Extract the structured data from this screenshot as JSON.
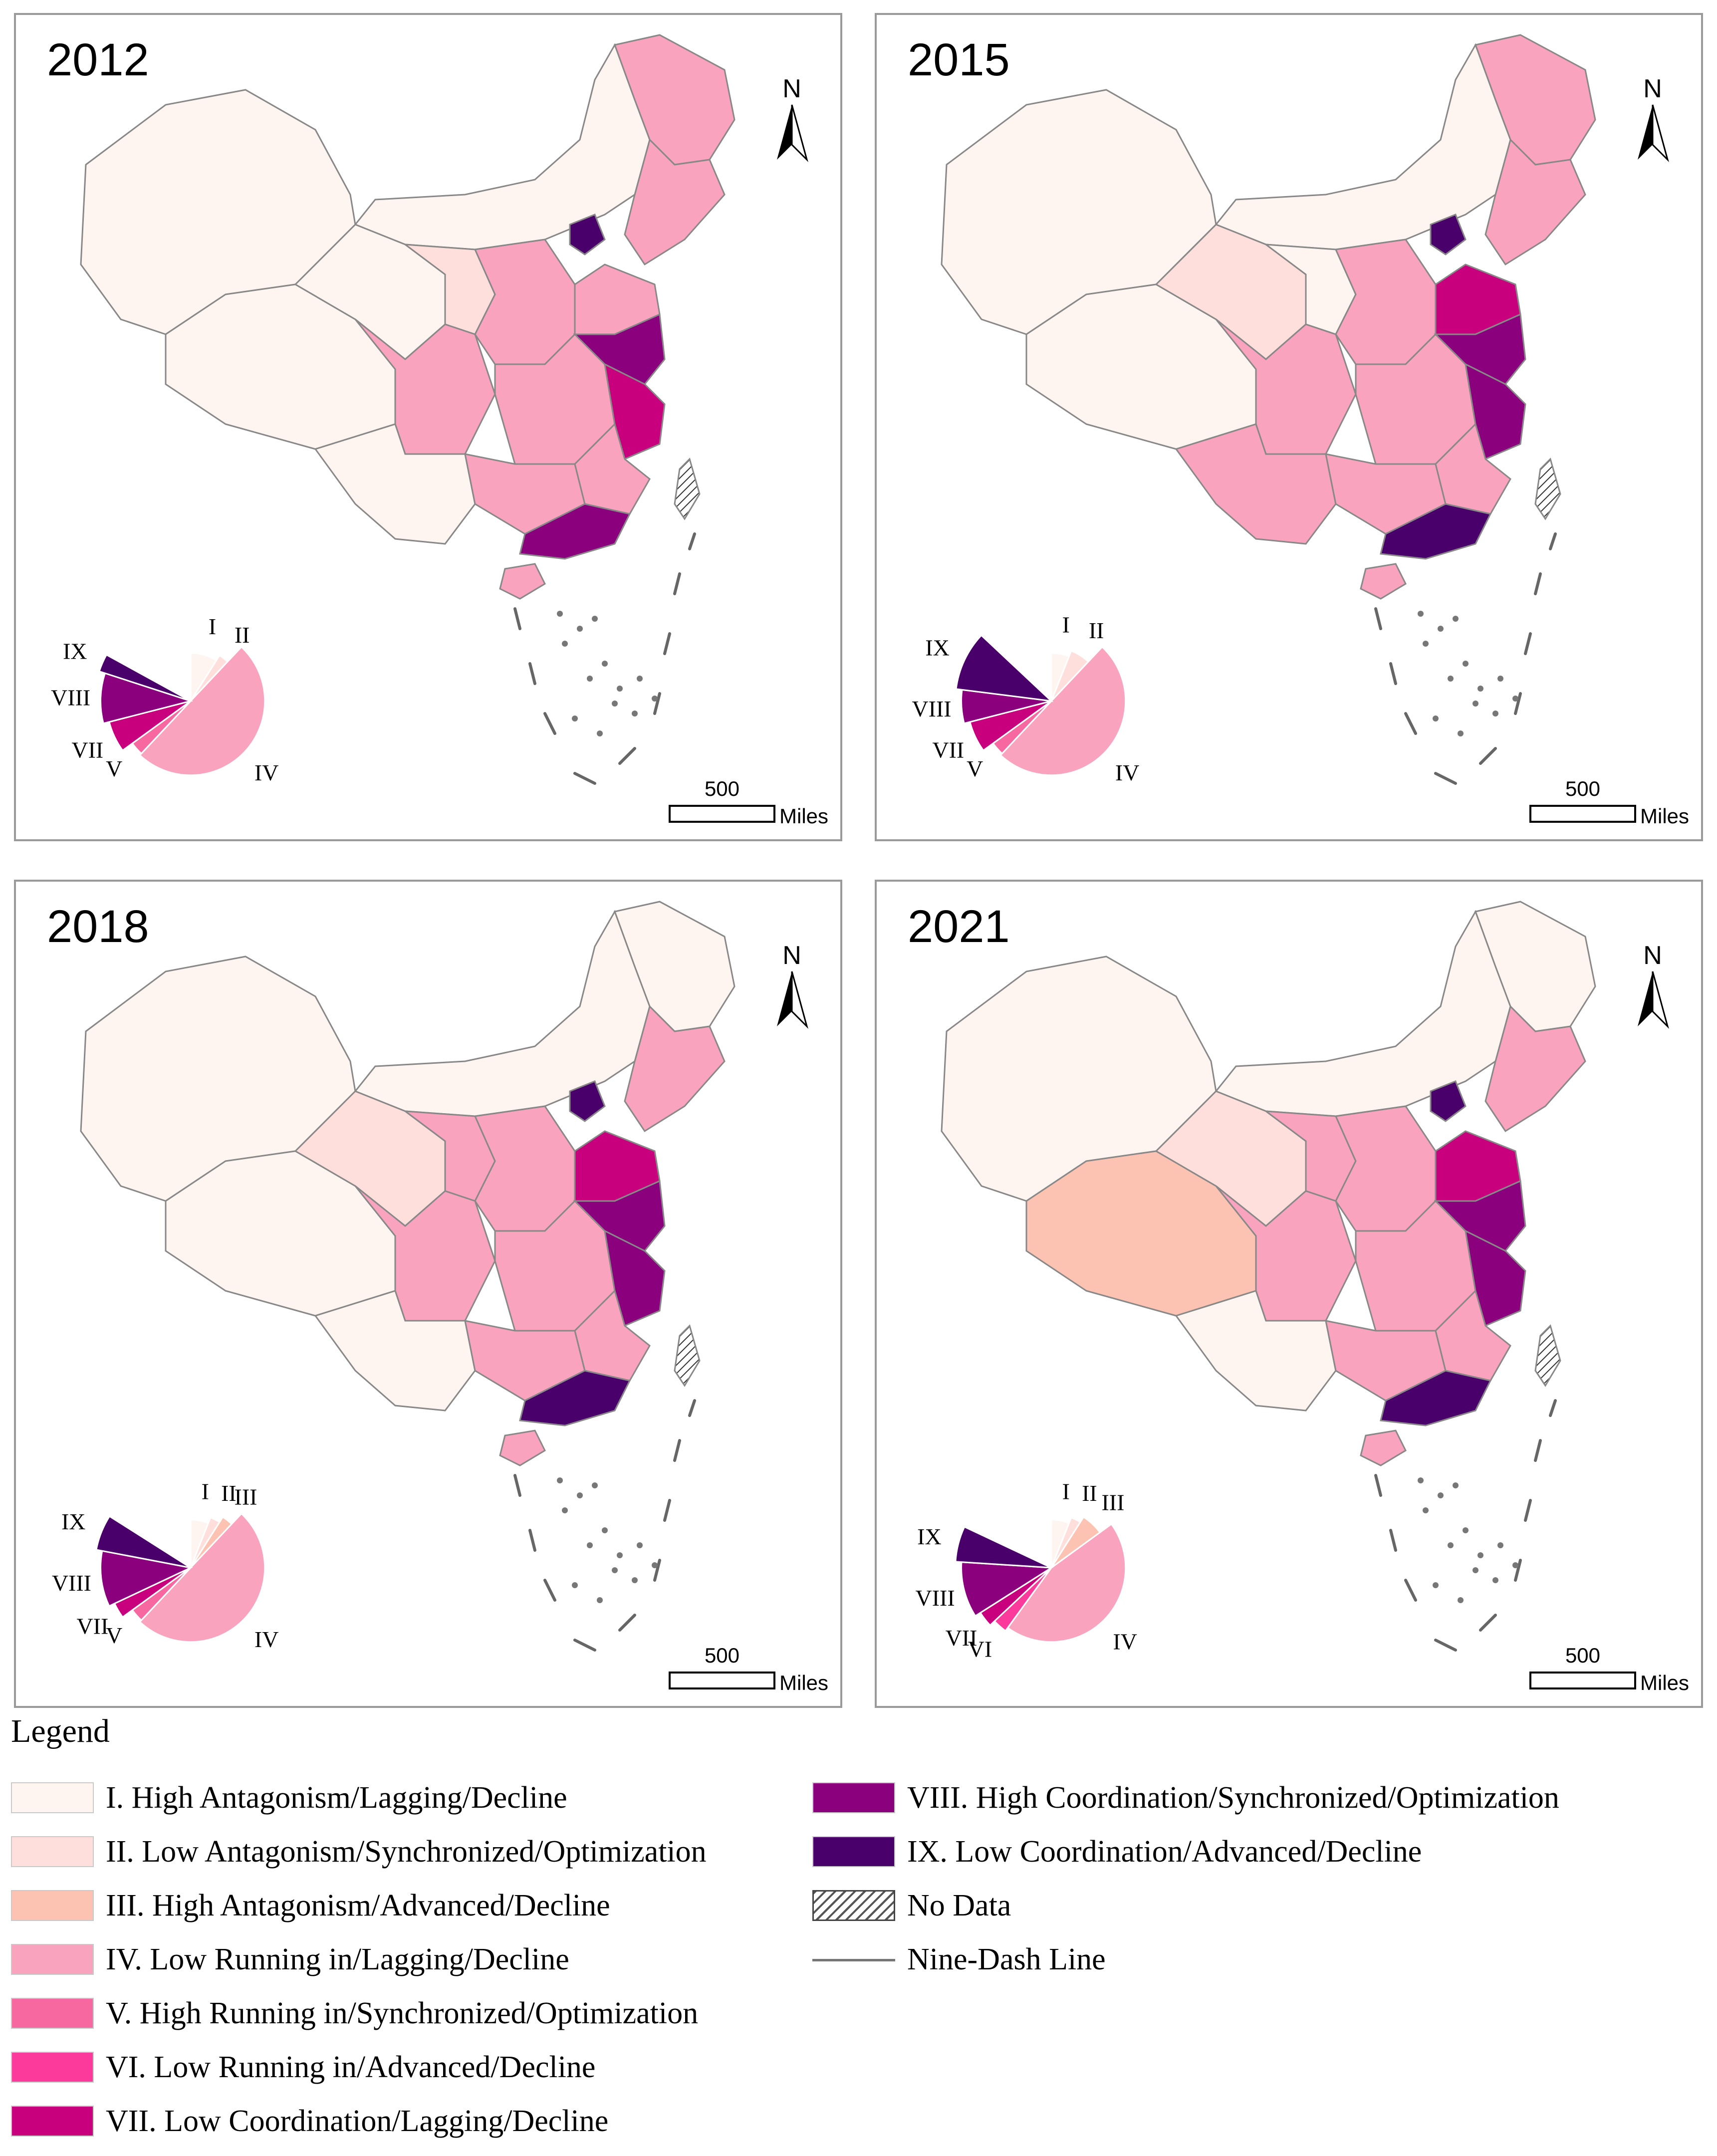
{
  "colors": {
    "I": "#fff5f0",
    "II": "#ffdfdc",
    "III": "#fcc3b3",
    "IV": "#f9a3bf",
    "V": "#f768a1",
    "VI": "#fc3a9c",
    "VII": "#c8007e",
    "VIII": "#8a007d",
    "IX": "#4a006a",
    "border": "#888888"
  },
  "panels": [
    {
      "year": "2012",
      "north": "N",
      "scale_value": "500",
      "scale_unit": "Miles",
      "pie": [
        {
          "cls": "I",
          "label": "I",
          "share": 0.09
        },
        {
          "cls": "II",
          "label": "II",
          "share": 0.03
        },
        {
          "cls": "IV",
          "label": "IV",
          "share": 0.5
        },
        {
          "cls": "V",
          "label": "V",
          "share": 0.03
        },
        {
          "cls": "VII",
          "label": "VII",
          "share": 0.06
        },
        {
          "cls": "VIII",
          "label": "VIII",
          "share": 0.09
        },
        {
          "cls": "IX",
          "label": "IX",
          "share": 0.03
        }
      ]
    },
    {
      "year": "2015",
      "north": "N",
      "scale_value": "500",
      "scale_unit": "Miles",
      "pie": [
        {
          "cls": "I",
          "label": "I",
          "share": 0.06
        },
        {
          "cls": "II",
          "label": "II",
          "share": 0.06
        },
        {
          "cls": "IV",
          "label": "IV",
          "share": 0.5
        },
        {
          "cls": "V",
          "label": "V",
          "share": 0.03
        },
        {
          "cls": "VII",
          "label": "VII",
          "share": 0.06
        },
        {
          "cls": "VIII",
          "label": "VIII",
          "share": 0.06
        },
        {
          "cls": "IX",
          "label": "IX",
          "share": 0.1
        }
      ]
    },
    {
      "year": "2018",
      "north": "N",
      "scale_value": "500",
      "scale_unit": "Miles",
      "pie": [
        {
          "cls": "I",
          "label": "I",
          "share": 0.06
        },
        {
          "cls": "II",
          "label": "II",
          "share": 0.03
        },
        {
          "cls": "III",
          "label": "III",
          "share": 0.03
        },
        {
          "cls": "IV",
          "label": "IV",
          "share": 0.5
        },
        {
          "cls": "V",
          "label": "V",
          "share": 0.03
        },
        {
          "cls": "VII",
          "label": "VII",
          "share": 0.03
        },
        {
          "cls": "VIII",
          "label": "VIII",
          "share": 0.1
        },
        {
          "cls": "IX",
          "label": "IX",
          "share": 0.06
        }
      ]
    },
    {
      "year": "2021",
      "north": "N",
      "scale_value": "500",
      "scale_unit": "Miles",
      "pie": [
        {
          "cls": "I",
          "label": "I",
          "share": 0.06
        },
        {
          "cls": "II",
          "label": "II",
          "share": 0.03
        },
        {
          "cls": "III",
          "label": "III",
          "share": 0.06
        },
        {
          "cls": "IV",
          "label": "IV",
          "share": 0.45
        },
        {
          "cls": "VI",
          "label": "VI",
          "share": 0.03
        },
        {
          "cls": "VII",
          "label": "VII",
          "share": 0.03
        },
        {
          "cls": "VIII",
          "label": "VIII",
          "share": 0.1
        },
        {
          "cls": "IX",
          "label": "IX",
          "share": 0.06
        }
      ]
    }
  ],
  "legend": {
    "title": "Legend",
    "items": [
      {
        "cls": "I",
        "label": "I. High Antagonism/Lagging/Decline"
      },
      {
        "cls": "II",
        "label": "II. Low Antagonism/Synchronized/Optimization"
      },
      {
        "cls": "III",
        "label": "III. High Antagonism/Advanced/Decline"
      },
      {
        "cls": "IV",
        "label": "IV. Low Running in/Lagging/Decline"
      },
      {
        "cls": "V",
        "label": "V. High Running in/Synchronized/Optimization"
      },
      {
        "cls": "VI",
        "label": "VI. Low Running in/Advanced/Decline"
      },
      {
        "cls": "VII",
        "label": "VII. Low Coordination/Lagging/Decline"
      },
      {
        "cls": "VIII",
        "label": "VIII. High Coordination/Synchronized/Optimization"
      },
      {
        "cls": "IX",
        "label": "IX. Low Coordination/Advanced/Decline"
      },
      {
        "cls": "nodata",
        "label": "No Data"
      },
      {
        "cls": "line",
        "label": "Nine-Dash Line"
      }
    ]
  }
}
